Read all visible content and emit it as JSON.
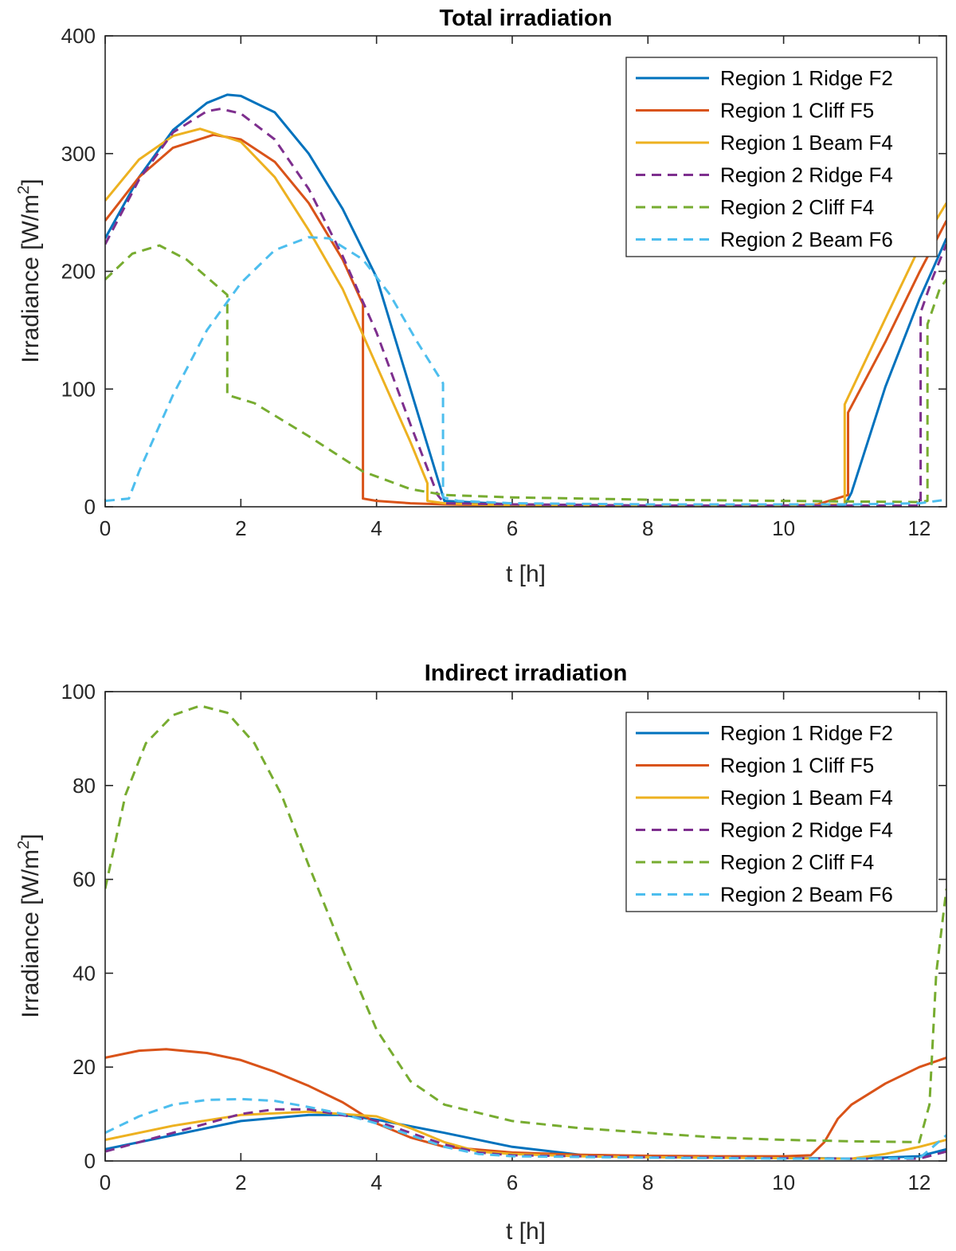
{
  "chart_data": [
    {
      "type": "line",
      "title": "Total irradiation",
      "xlabel": "t [h]",
      "ylabel_main": "Irradiance [W/m",
      "ylabel_sup": "2",
      "ylabel_close": "]",
      "xlim": [
        0,
        12.4
      ],
      "ylim": [
        0,
        400
      ],
      "xticks": [
        0,
        2,
        4,
        6,
        8,
        10,
        12
      ],
      "yticks": [
        0,
        100,
        200,
        300,
        400
      ],
      "legend_position": "top-right",
      "series": [
        {
          "name": "Region 1 Ridge F2",
          "color": "#0072BD",
          "dash": "solid",
          "x": [
            0,
            0.5,
            1,
            1.5,
            1.8,
            2,
            2.5,
            3,
            3.5,
            4,
            4.5,
            5,
            6,
            8,
            10,
            10.9,
            11,
            11.5,
            12,
            12.4
          ],
          "y": [
            228,
            280,
            320,
            343,
            350,
            349,
            335,
            300,
            253,
            195,
            100,
            5,
            2,
            1,
            1,
            1,
            12,
            102,
            176,
            228
          ]
        },
        {
          "name": "Region 1 Cliff F5",
          "color": "#D95319",
          "dash": "solid",
          "x": [
            0,
            0.5,
            1,
            1.6,
            2,
            2.5,
            3,
            3.5,
            3.8,
            3.8,
            4,
            4.5,
            5,
            6,
            8,
            10,
            10.5,
            10.95,
            10.95,
            11.5,
            12,
            12.4
          ],
          "y": [
            243,
            280,
            305,
            316,
            312,
            293,
            258,
            210,
            172,
            7,
            5,
            3,
            2,
            1,
            1,
            1,
            2,
            10,
            80,
            140,
            199,
            243
          ]
        },
        {
          "name": "Region 1 Beam F4",
          "color": "#EDB120",
          "dash": "solid",
          "x": [
            0,
            0.5,
            1,
            1.4,
            2,
            2.5,
            3,
            3.5,
            4,
            4.5,
            4.75,
            4.75,
            5,
            6,
            8,
            10,
            10.9,
            10.9,
            11.5,
            12,
            12.4
          ],
          "y": [
            260,
            295,
            315,
            321,
            310,
            280,
            235,
            185,
            120,
            55,
            20,
            5,
            3,
            1,
            1,
            1,
            2,
            87,
            160,
            220,
            258
          ]
        },
        {
          "name": "Region 2 Ridge F4",
          "color": "#7E2F8E",
          "dash": "dashed",
          "x": [
            0,
            0.5,
            1,
            1.5,
            1.7,
            2,
            2.5,
            3,
            3.5,
            4,
            4.5,
            4.9,
            5,
            6,
            8,
            10,
            12,
            12.02,
            12.02,
            12.2,
            12.4
          ],
          "y": [
            223,
            278,
            318,
            336,
            338,
            334,
            312,
            270,
            213,
            148,
            70,
            10,
            3,
            2,
            1,
            1,
            1,
            2,
            165,
            195,
            223
          ]
        },
        {
          "name": "Region 2 Cliff F4",
          "color": "#77AC30",
          "dash": "dashed",
          "x": [
            0,
            0.4,
            0.8,
            1.2,
            1.5,
            1.8,
            1.8,
            2.2,
            3,
            3.8,
            4.5,
            5,
            6,
            8,
            10,
            12,
            12.12,
            12.12,
            12.3,
            12.4
          ],
          "y": [
            193,
            215,
            222,
            210,
            195,
            180,
            95,
            88,
            60,
            30,
            15,
            10,
            8,
            6,
            5,
            4,
            5,
            155,
            185,
            193
          ]
        },
        {
          "name": "Region 2 Beam F6",
          "color": "#4DBEEE",
          "dash": "dashed",
          "x": [
            0,
            0.35,
            0.5,
            1,
            1.5,
            2,
            2.5,
            3,
            3.3,
            3.8,
            4.2,
            4.6,
            4.98,
            4.98,
            5.2,
            6,
            8,
            10,
            11,
            12,
            12.4
          ],
          "y": [
            5,
            7,
            30,
            95,
            150,
            190,
            218,
            229,
            228,
            210,
            180,
            140,
            105,
            8,
            5,
            3,
            2,
            2,
            2,
            3,
            6
          ]
        }
      ]
    },
    {
      "type": "line",
      "title": "Indirect irradiation",
      "xlabel": "t [h]",
      "ylabel_main": "Irradiance [W/m",
      "ylabel_sup": "2",
      "ylabel_close": "]",
      "xlim": [
        0,
        12.4
      ],
      "ylim": [
        0,
        100
      ],
      "xticks": [
        0,
        2,
        4,
        6,
        8,
        10,
        12
      ],
      "yticks": [
        0,
        20,
        40,
        60,
        80,
        100
      ],
      "legend_position": "top-right",
      "series": [
        {
          "name": "Region 1 Ridge F2",
          "color": "#0072BD",
          "dash": "solid",
          "x": [
            0,
            1,
            2,
            3,
            3.5,
            4,
            5,
            6,
            7,
            8,
            10,
            11,
            12,
            12.4
          ],
          "y": [
            2.5,
            5.5,
            8.5,
            9.8,
            9.8,
            8.8,
            6,
            3,
            1.3,
            1,
            0.7,
            0.5,
            1,
            2.5
          ]
        },
        {
          "name": "Region 1 Cliff F5",
          "color": "#D95319",
          "dash": "solid",
          "x": [
            0,
            0.5,
            0.9,
            1.5,
            2,
            2.5,
            3,
            3.5,
            4,
            4.5,
            5,
            6,
            7,
            8,
            9,
            10,
            10.4,
            10.6,
            10.8,
            11,
            11.5,
            12,
            12.4
          ],
          "y": [
            22,
            23.5,
            23.8,
            23,
            21.5,
            19,
            16,
            12.5,
            8,
            5,
            3,
            1.8,
            1.3,
            1.1,
            1,
            1,
            1.2,
            4,
            9,
            12,
            16.5,
            20,
            22
          ]
        },
        {
          "name": "Region 1 Beam F4",
          "color": "#EDB120",
          "dash": "solid",
          "x": [
            0,
            1,
            2,
            3,
            4,
            4.5,
            5,
            5.5,
            6,
            7,
            8,
            10,
            11,
            11.5,
            12,
            12.4
          ],
          "y": [
            4.5,
            7.5,
            9.8,
            10.5,
            9.5,
            7,
            4,
            2,
            1.5,
            1,
            0.8,
            0.6,
            0.5,
            1.5,
            3,
            4.5
          ]
        },
        {
          "name": "Region 2 Ridge F4",
          "color": "#7E2F8E",
          "dash": "dashed",
          "x": [
            0,
            1,
            2,
            2.5,
            3,
            4,
            4.5,
            5,
            5.5,
            6,
            8,
            10,
            11,
            12,
            12.4
          ],
          "y": [
            2,
            6,
            10,
            11,
            11,
            8.5,
            6,
            3.5,
            1.8,
            1.2,
            0.8,
            0.6,
            0.5,
            0.5,
            2
          ]
        },
        {
          "name": "Region 2 Cliff F4",
          "color": "#77AC30",
          "dash": "dashed",
          "x": [
            0,
            0.3,
            0.6,
            1,
            1.4,
            1.8,
            2.2,
            2.6,
            3,
            3.5,
            4,
            4.5,
            5,
            6,
            7,
            8,
            9,
            10,
            11,
            12,
            12.15,
            12.25,
            12.4
          ],
          "y": [
            58,
            78,
            89,
            95,
            97,
            95.5,
            89,
            78,
            63,
            45,
            28,
            17,
            12,
            8.5,
            7,
            6,
            5,
            4.5,
            4.2,
            4,
            12,
            40,
            58
          ]
        },
        {
          "name": "Region 2 Beam F6",
          "color": "#4DBEEE",
          "dash": "dashed",
          "x": [
            0,
            0.5,
            1,
            1.5,
            2,
            2.5,
            3,
            3.5,
            4,
            4.5,
            5,
            5.5,
            6,
            8,
            10,
            11,
            12,
            12.2,
            12.4
          ],
          "y": [
            6,
            9.5,
            12,
            13,
            13.2,
            12.8,
            11.5,
            10,
            8,
            5.5,
            3,
            1.5,
            1,
            0.7,
            0.5,
            0.5,
            0.6,
            3,
            5.5
          ]
        }
      ]
    }
  ]
}
